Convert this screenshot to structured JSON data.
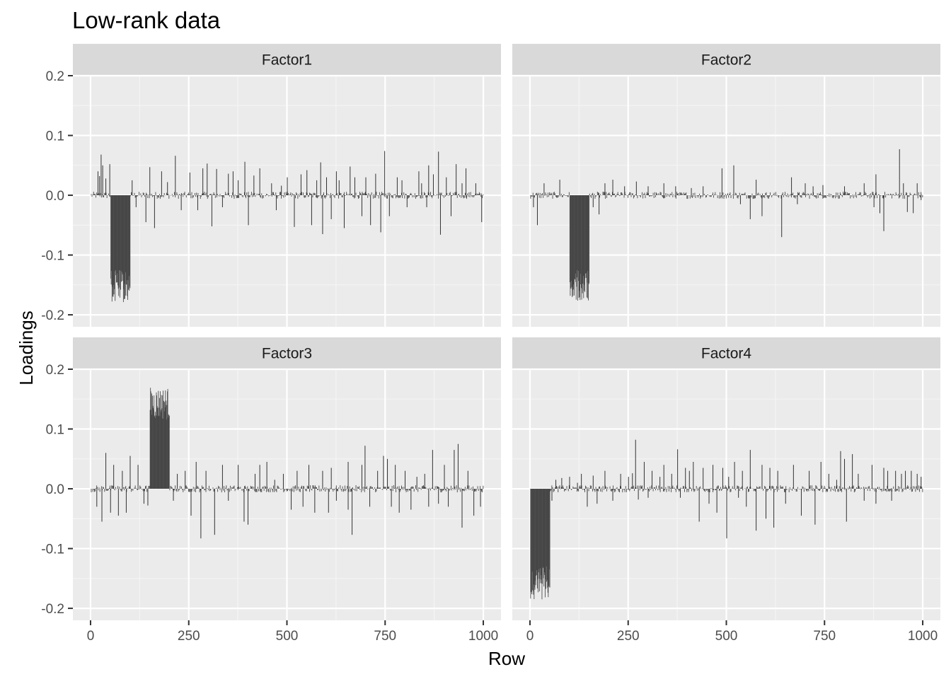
{
  "chart_data": {
    "type": "bar",
    "title": "Low-rank data",
    "xlabel": "Row",
    "ylabel": "Loadings",
    "xlim": [
      -45,
      1045
    ],
    "ylim": [
      -0.22,
      0.2
    ],
    "x_ticks": [
      0,
      250,
      500,
      750,
      1000
    ],
    "y_ticks": [
      -0.2,
      -0.1,
      0.0,
      0.1,
      0.2
    ],
    "y_tick_labels": [
      "-0.2",
      "-0.1",
      "0.0",
      "0.1",
      "0.2"
    ],
    "grid": true,
    "layout": "2x2 facets",
    "bar_color": "#333333",
    "panel_background": "#ebebeb",
    "strip_background": "#d9d9d9",
    "n_rows": 1000,
    "facets": [
      {
        "name": "Factor1",
        "block": {
          "start": 51,
          "end": 100,
          "sign": -1,
          "level": 0.155
        },
        "spikes": [
          [
            18,
            0.04
          ],
          [
            22,
            0.032
          ],
          [
            26,
            0.068
          ],
          [
            30,
            0.05
          ],
          [
            38,
            0.028
          ],
          [
            48,
            0.052
          ],
          [
            105,
            0.025
          ],
          [
            115,
            -0.02
          ],
          [
            140,
            -0.045
          ],
          [
            150,
            0.047
          ],
          [
            162,
            -0.055
          ],
          [
            180,
            0.04
          ],
          [
            195,
            0.022
          ],
          [
            215,
            0.066
          ],
          [
            230,
            -0.025
          ],
          [
            252,
            0.038
          ],
          [
            272,
            -0.025
          ],
          [
            285,
            0.045
          ],
          [
            296,
            0.053
          ],
          [
            308,
            -0.052
          ],
          [
            320,
            0.044
          ],
          [
            335,
            -0.02
          ],
          [
            350,
            0.036
          ],
          [
            362,
            0.04
          ],
          [
            375,
            0.025
          ],
          [
            392,
            0.056
          ],
          [
            401,
            -0.05
          ],
          [
            415,
            0.033
          ],
          [
            430,
            0.045
          ],
          [
            460,
            0.02
          ],
          [
            472,
            -0.025
          ],
          [
            485,
            0.016
          ],
          [
            500,
            0.03
          ],
          [
            518,
            -0.053
          ],
          [
            535,
            0.035
          ],
          [
            550,
            0.042
          ],
          [
            562,
            -0.05
          ],
          [
            575,
            0.025
          ],
          [
            585,
            0.055
          ],
          [
            590,
            -0.065
          ],
          [
            600,
            0.03
          ],
          [
            612,
            -0.04
          ],
          [
            625,
            0.04
          ],
          [
            632,
            0.025
          ],
          [
            645,
            -0.055
          ],
          [
            660,
            0.048
          ],
          [
            672,
            0.03
          ],
          [
            690,
            -0.035
          ],
          [
            700,
            0.03
          ],
          [
            712,
            -0.05
          ],
          [
            725,
            0.036
          ],
          [
            738,
            -0.062
          ],
          [
            748,
            0.074
          ],
          [
            760,
            -0.035
          ],
          [
            780,
            0.03
          ],
          [
            792,
            0.025
          ],
          [
            805,
            -0.02
          ],
          [
            835,
            0.04
          ],
          [
            842,
            0.02
          ],
          [
            855,
            -0.02
          ],
          [
            860,
            0.05
          ],
          [
            872,
            0.035
          ],
          [
            885,
            0.073
          ],
          [
            890,
            -0.066
          ],
          [
            905,
            0.03
          ],
          [
            917,
            -0.035
          ],
          [
            930,
            0.052
          ],
          [
            945,
            0.02
          ],
          [
            955,
            0.045
          ],
          [
            980,
            0.02
          ],
          [
            995,
            -0.045
          ]
        ]
      },
      {
        "name": "Factor2",
        "block": {
          "start": 101,
          "end": 150,
          "sign": -1,
          "level": 0.155
        },
        "spikes": [
          [
            8,
            -0.02
          ],
          [
            18,
            -0.05
          ],
          [
            35,
            0.02
          ],
          [
            75,
            0.026
          ],
          [
            160,
            -0.02
          ],
          [
            175,
            -0.032
          ],
          [
            190,
            0.02
          ],
          [
            210,
            0.026
          ],
          [
            240,
            0.015
          ],
          [
            270,
            0.023
          ],
          [
            300,
            0.015
          ],
          [
            340,
            0.02
          ],
          [
            370,
            0.015
          ],
          [
            410,
            0.012
          ],
          [
            440,
            0.015
          ],
          [
            488,
            0.045
          ],
          [
            518,
            0.05
          ],
          [
            535,
            -0.015
          ],
          [
            560,
            -0.04
          ],
          [
            575,
            0.026
          ],
          [
            590,
            -0.035
          ],
          [
            640,
            -0.07
          ],
          [
            665,
            0.03
          ],
          [
            680,
            -0.015
          ],
          [
            700,
            0.02
          ],
          [
            720,
            0.015
          ],
          [
            745,
            0.017
          ],
          [
            800,
            0.015
          ],
          [
            850,
            0.02
          ],
          [
            875,
            -0.02
          ],
          [
            880,
            0.035
          ],
          [
            890,
            -0.03
          ],
          [
            900,
            -0.06
          ],
          [
            940,
            0.077
          ],
          [
            950,
            0.02
          ],
          [
            960,
            -0.028
          ],
          [
            975,
            -0.03
          ],
          [
            985,
            0.02
          ],
          [
            995,
            -0.008
          ]
        ]
      },
      {
        "name": "Factor3",
        "block": {
          "start": 151,
          "end": 200,
          "sign": 1,
          "level": 0.145
        },
        "spikes": [
          [
            15,
            -0.03
          ],
          [
            28,
            -0.055
          ],
          [
            38,
            0.06
          ],
          [
            50,
            -0.04
          ],
          [
            58,
            0.04
          ],
          [
            70,
            -0.045
          ],
          [
            80,
            0.03
          ],
          [
            90,
            -0.04
          ],
          [
            100,
            0.055
          ],
          [
            120,
            0.04
          ],
          [
            135,
            -0.025
          ],
          [
            145,
            -0.028
          ],
          [
            210,
            -0.02
          ],
          [
            220,
            0.025
          ],
          [
            240,
            0.03
          ],
          [
            255,
            -0.045
          ],
          [
            268,
            0.045
          ],
          [
            280,
            -0.083
          ],
          [
            293,
            0.03
          ],
          [
            315,
            -0.077
          ],
          [
            335,
            0.04
          ],
          [
            350,
            -0.02
          ],
          [
            375,
            0.04
          ],
          [
            390,
            -0.055
          ],
          [
            400,
            -0.06
          ],
          [
            418,
            0.025
          ],
          [
            430,
            0.04
          ],
          [
            448,
            0.045
          ],
          [
            468,
            0.015
          ],
          [
            490,
            0.025
          ],
          [
            510,
            -0.035
          ],
          [
            525,
            0.03
          ],
          [
            540,
            -0.03
          ],
          [
            555,
            0.04
          ],
          [
            570,
            -0.04
          ],
          [
            590,
            0.03
          ],
          [
            605,
            -0.04
          ],
          [
            612,
            0.035
          ],
          [
            625,
            -0.02
          ],
          [
            655,
            0.045
          ],
          [
            655,
            -0.035
          ],
          [
            665,
            -0.077
          ],
          [
            690,
            0.04
          ],
          [
            698,
            0.072
          ],
          [
            710,
            -0.03
          ],
          [
            730,
            0.03
          ],
          [
            745,
            0.055
          ],
          [
            755,
            0.05
          ],
          [
            765,
            -0.03
          ],
          [
            775,
            0.04
          ],
          [
            785,
            -0.04
          ],
          [
            800,
            0.03
          ],
          [
            815,
            -0.035
          ],
          [
            830,
            0.02
          ],
          [
            850,
            0.025
          ],
          [
            860,
            -0.03
          ],
          [
            870,
            0.065
          ],
          [
            885,
            -0.025
          ],
          [
            900,
            0.04
          ],
          [
            910,
            -0.03
          ],
          [
            925,
            0.065
          ],
          [
            935,
            0.075
          ],
          [
            945,
            -0.065
          ],
          [
            960,
            0.03
          ],
          [
            975,
            -0.045
          ],
          [
            992,
            -0.03
          ]
        ]
      },
      {
        "name": "Factor4",
        "block": {
          "start": 1,
          "end": 50,
          "sign": -1,
          "level": 0.16
        },
        "spikes": [
          [
            55,
            -0.02
          ],
          [
            65,
            0.015
          ],
          [
            80,
            0.018
          ],
          [
            100,
            0.02
          ],
          [
            120,
            0.01
          ],
          [
            130,
            0.025
          ],
          [
            145,
            -0.03
          ],
          [
            160,
            0.022
          ],
          [
            170,
            -0.025
          ],
          [
            190,
            0.03
          ],
          [
            210,
            -0.02
          ],
          [
            230,
            0.025
          ],
          [
            250,
            0.02
          ],
          [
            260,
            0.026
          ],
          [
            268,
            0.082
          ],
          [
            275,
            -0.018
          ],
          [
            290,
            0.045
          ],
          [
            300,
            -0.015
          ],
          [
            310,
            0.03
          ],
          [
            330,
            0.02
          ],
          [
            340,
            0.04
          ],
          [
            360,
            0.025
          ],
          [
            375,
            0.066
          ],
          [
            382,
            -0.015
          ],
          [
            395,
            0.035
          ],
          [
            405,
            0.03
          ],
          [
            415,
            0.045
          ],
          [
            430,
            -0.055
          ],
          [
            440,
            0.035
          ],
          [
            455,
            -0.025
          ],
          [
            465,
            0.04
          ],
          [
            475,
            -0.04
          ],
          [
            490,
            0.035
          ],
          [
            500,
            -0.083
          ],
          [
            505,
            0.02
          ],
          [
            520,
            0.045
          ],
          [
            530,
            -0.015
          ],
          [
            540,
            0.03
          ],
          [
            550,
            -0.03
          ],
          [
            560,
            0.065
          ],
          [
            575,
            -0.07
          ],
          [
            590,
            0.04
          ],
          [
            600,
            -0.05
          ],
          [
            610,
            0.035
          ],
          [
            620,
            -0.065
          ],
          [
            630,
            0.03
          ],
          [
            650,
            -0.025
          ],
          [
            670,
            0.04
          ],
          [
            690,
            -0.045
          ],
          [
            710,
            0.03
          ],
          [
            725,
            -0.06
          ],
          [
            740,
            0.045
          ],
          [
            760,
            0.025
          ],
          [
            780,
            0.015
          ],
          [
            790,
            0.063
          ],
          [
            800,
            0.05
          ],
          [
            805,
            -0.055
          ],
          [
            820,
            0.058
          ],
          [
            835,
            0.025
          ],
          [
            850,
            -0.02
          ],
          [
            870,
            0.04
          ],
          [
            880,
            -0.025
          ],
          [
            900,
            0.035
          ],
          [
            910,
            0.03
          ],
          [
            920,
            -0.02
          ],
          [
            930,
            0.03
          ],
          [
            945,
            0.025
          ],
          [
            955,
            0.03
          ],
          [
            970,
            0.03
          ],
          [
            985,
            0.025
          ],
          [
            995,
            0.02
          ]
        ]
      }
    ]
  }
}
